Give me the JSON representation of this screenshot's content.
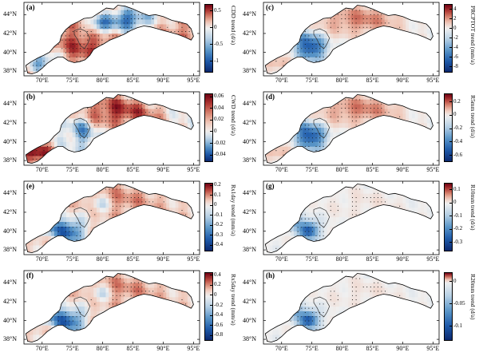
{
  "longitude_ticks": [
    "70°E",
    "75°E",
    "80°E",
    "85°E",
    "90°E",
    "95°E"
  ],
  "latitude_ticks": [
    "44°N",
    "42°N",
    "40°N",
    "38°N"
  ],
  "panels": [
    {
      "id": "a",
      "label": "(a)",
      "colorbar_title": "CDD trend (d/a)",
      "colorbar_ticks": [
        "0.5",
        "0",
        "-0.5",
        "-1"
      ],
      "colorbar_range": [
        -1.3,
        0.7
      ],
      "colorbar_tick_values": [
        0.5,
        0,
        -0.5,
        -1
      ],
      "pattern": "cdd"
    },
    {
      "id": "c",
      "label": "(c)",
      "colorbar_title": "PRCPTOT trend (mm/a)",
      "colorbar_ticks": [
        "4",
        "2",
        "0",
        "-2",
        "-4",
        "-6",
        "-8"
      ],
      "colorbar_range": [
        -9,
        5
      ],
      "colorbar_tick_values": [
        4,
        2,
        0,
        -2,
        -4,
        -6,
        -8
      ],
      "pattern": "wet"
    },
    {
      "id": "b",
      "label": "(b)",
      "colorbar_title": "CWD trend (d/a)",
      "colorbar_ticks": [
        "0.06",
        "0.04",
        "0.02",
        "0",
        "-0.02",
        "-0.04"
      ],
      "colorbar_range": [
        -0.05,
        0.065
      ],
      "colorbar_tick_values": [
        0.06,
        0.04,
        0.02,
        0,
        -0.02,
        -0.04
      ],
      "pattern": "cwd"
    },
    {
      "id": "d",
      "label": "(d)",
      "colorbar_title": "R5mm trend (d/a)",
      "colorbar_ticks": [
        "0.2",
        "0",
        "-0.2",
        "-0.4",
        "-0.6"
      ],
      "colorbar_range": [
        -0.68,
        0.32
      ],
      "colorbar_tick_values": [
        0.2,
        0,
        -0.2,
        -0.4,
        -0.6
      ],
      "pattern": "wet"
    },
    {
      "id": "e",
      "label": "(e)",
      "colorbar_title": "Rx1day trend (mm/a)",
      "colorbar_ticks": [
        "0.2",
        "0.1",
        "0",
        "-0.1",
        "-0.2",
        "-0.3",
        "-0.4"
      ],
      "colorbar_range": [
        -0.45,
        0.22
      ],
      "colorbar_tick_values": [
        0.2,
        0.1,
        0,
        -0.1,
        -0.2,
        -0.3,
        -0.4
      ],
      "pattern": "rx"
    },
    {
      "id": "g",
      "label": "(g)",
      "colorbar_title": "R10mm trend (d/a)",
      "colorbar_ticks": [
        "0.1",
        "0",
        "-0.1",
        "-0.2",
        "-0.3"
      ],
      "colorbar_range": [
        -0.36,
        0.15
      ],
      "colorbar_tick_values": [
        0.1,
        0,
        -0.1,
        -0.2,
        -0.3
      ],
      "pattern": "faint"
    },
    {
      "id": "f",
      "label": "(f)",
      "colorbar_title": "Rx5day trend (mm/a)",
      "colorbar_ticks": [
        "0.4",
        "0.2",
        "0",
        "-0.2",
        "-0.4",
        "-0.6",
        "-0.8"
      ],
      "colorbar_range": [
        -0.88,
        0.45
      ],
      "colorbar_tick_values": [
        0.4,
        0.2,
        0,
        -0.2,
        -0.4,
        -0.6,
        -0.8
      ],
      "pattern": "rx"
    },
    {
      "id": "h",
      "label": "(h)",
      "colorbar_title": "R20mm trend (d/a)",
      "colorbar_ticks": [
        "0",
        "-0.05",
        "-0.1"
      ],
      "colorbar_range": [
        -0.13,
        0.02
      ],
      "colorbar_tick_values": [
        0,
        -0.05,
        -0.1
      ],
      "pattern": "faint"
    }
  ]
}
